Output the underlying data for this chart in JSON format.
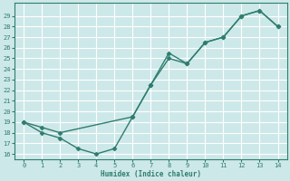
{
  "xlabel": "Humidex (Indice chaleur)",
  "line1_x": [
    0,
    1,
    2,
    3,
    4,
    5,
    6,
    7,
    8,
    9,
    10,
    11,
    12,
    13,
    14
  ],
  "line1_y": [
    19,
    18,
    17.5,
    16.5,
    16,
    16.5,
    19.5,
    22.5,
    25.5,
    24.5,
    26.5,
    27,
    29,
    29.5,
    28
  ],
  "line2_x": [
    0,
    1,
    2,
    6,
    7,
    8,
    9,
    10,
    11,
    12,
    13,
    14
  ],
  "line2_y": [
    19,
    18.5,
    18,
    19.5,
    22.5,
    25,
    24.5,
    26.5,
    27,
    29,
    29.5,
    28
  ],
  "line_color": "#2e7d6e",
  "bg_color": "#cde8e8",
  "grid_color": "#b0d0d0",
  "xlim": [
    -0.5,
    14.5
  ],
  "ylim": [
    15.5,
    30.2
  ],
  "xticks": [
    0,
    1,
    2,
    3,
    4,
    5,
    6,
    7,
    8,
    9,
    10,
    11,
    12,
    13,
    14
  ],
  "yticks": [
    16,
    17,
    18,
    19,
    20,
    21,
    22,
    23,
    24,
    25,
    26,
    27,
    28,
    29
  ],
  "marker": "D",
  "marker_size": 2.5,
  "linewidth": 1.0
}
